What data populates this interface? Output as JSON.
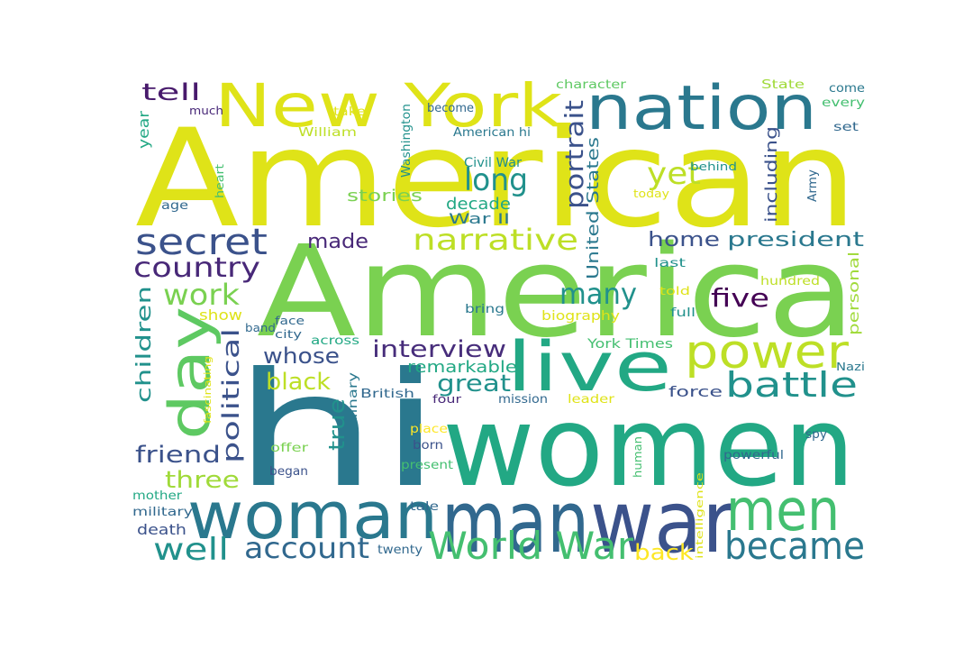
{
  "words": [
    {
      "text": "American",
      "color": "#dfe318"
    },
    {
      "text": "America",
      "color": "#7ad151"
    },
    {
      "text": "hi",
      "color": "#2a788e"
    },
    {
      "text": "women",
      "color": "#22a884"
    },
    {
      "text": "man",
      "color": "#31688e"
    },
    {
      "text": "war",
      "color": "#3b528b"
    },
    {
      "text": "woman",
      "color": "#2a788e"
    },
    {
      "text": "nation",
      "color": "#2a788e"
    },
    {
      "text": "New York",
      "color": "#dfe318"
    },
    {
      "text": "live",
      "color": "#22a884"
    },
    {
      "text": "power",
      "color": "#bddf26"
    },
    {
      "text": "day",
      "color": "#5ec962"
    },
    {
      "text": "men",
      "color": "#44bf70"
    },
    {
      "text": "World War",
      "color": "#44bf70"
    },
    {
      "text": "became",
      "color": "#2a788e"
    },
    {
      "text": "secret",
      "color": "#3b528b"
    },
    {
      "text": "narrative",
      "color": "#bddf26"
    },
    {
      "text": "battle",
      "color": "#21918c"
    },
    {
      "text": "country",
      "color": "#482878"
    },
    {
      "text": "account",
      "color": "#31688e"
    },
    {
      "text": "long",
      "color": "#21918c"
    },
    {
      "text": "many",
      "color": "#21918c"
    },
    {
      "text": "yet",
      "color": "#bddf26"
    },
    {
      "text": "work",
      "color": "#7ad151"
    },
    {
      "text": "well",
      "color": "#21918c"
    },
    {
      "text": "portrait",
      "color": "#3b528b"
    },
    {
      "text": "interview",
      "color": "#472d7b"
    },
    {
      "text": "political",
      "color": "#3b528b"
    },
    {
      "text": "home",
      "color": "#3b528b"
    },
    {
      "text": "president",
      "color": "#2a788e"
    },
    {
      "text": "five",
      "color": "#440154"
    },
    {
      "text": "whose",
      "color": "#3b528b"
    },
    {
      "text": "black",
      "color": "#bddf26"
    },
    {
      "text": "great",
      "color": "#21918c"
    },
    {
      "text": "tell",
      "color": "#481a6c"
    },
    {
      "text": "friend",
      "color": "#3b528b"
    },
    {
      "text": "three",
      "color": "#a0da39"
    },
    {
      "text": "children",
      "color": "#21918c"
    },
    {
      "text": "back",
      "color": "#fde725"
    },
    {
      "text": "true",
      "color": "#21918c"
    },
    {
      "text": "made",
      "color": "#482878"
    },
    {
      "text": "stories",
      "color": "#7ad151"
    },
    {
      "text": "decade",
      "color": "#22a884"
    },
    {
      "text": "War II",
      "color": "#2a788e"
    },
    {
      "text": "United States",
      "color": "#2a788e"
    },
    {
      "text": "including",
      "color": "#3b528b"
    },
    {
      "text": "remarkable",
      "color": "#22a884"
    },
    {
      "text": "force",
      "color": "#3b528b"
    },
    {
      "text": "personal",
      "color": "#a0da39"
    },
    {
      "text": "show",
      "color": "#dfe318"
    },
    {
      "text": "biography",
      "color": "#dfe318"
    },
    {
      "text": "year",
      "color": "#22a884"
    },
    {
      "text": "Civil War",
      "color": "#21918c"
    },
    {
      "text": "Washington",
      "color": "#21918c"
    },
    {
      "text": "American hi",
      "color": "#2a788e"
    },
    {
      "text": "York Times",
      "color": "#44bf70"
    },
    {
      "text": "extraordinary",
      "color": "#2a788e"
    },
    {
      "text": "British",
      "color": "#31688e"
    },
    {
      "text": "mission",
      "color": "#31688e"
    },
    {
      "text": "leader",
      "color": "#dfe318"
    },
    {
      "text": "Army",
      "color": "#31688e"
    },
    {
      "text": "hundred",
      "color": "#bddf26"
    },
    {
      "text": "character",
      "color": "#5ec962"
    },
    {
      "text": "State",
      "color": "#a0da39"
    },
    {
      "text": "come",
      "color": "#2a788e"
    },
    {
      "text": "every",
      "color": "#44bf70"
    },
    {
      "text": "set",
      "color": "#31688e"
    },
    {
      "text": "become",
      "color": "#31688e"
    },
    {
      "text": "much",
      "color": "#482878"
    },
    {
      "text": "take",
      "color": "#dfe318"
    },
    {
      "text": "William",
      "color": "#bddf26"
    },
    {
      "text": "heart",
      "color": "#44bf70"
    },
    {
      "text": "age",
      "color": "#31688e"
    },
    {
      "text": "behind",
      "color": "#21918c"
    },
    {
      "text": "today",
      "color": "#dfe318"
    },
    {
      "text": "last",
      "color": "#21918c"
    },
    {
      "text": "told",
      "color": "#dfe318"
    },
    {
      "text": "full",
      "color": "#21918c"
    },
    {
      "text": "bring",
      "color": "#2a788e"
    },
    {
      "text": "face",
      "color": "#31688e"
    },
    {
      "text": "city",
      "color": "#31688e"
    },
    {
      "text": "band",
      "color": "#31688e"
    },
    {
      "text": "across",
      "color": "#22a884"
    },
    {
      "text": "four",
      "color": "#482878"
    },
    {
      "text": "Nazi",
      "color": "#2a788e"
    },
    {
      "text": "fascinating",
      "color": "#dfe318"
    },
    {
      "text": "offer",
      "color": "#7ad151"
    },
    {
      "text": "born",
      "color": "#3b528b"
    },
    {
      "text": "place",
      "color": "#fde725"
    },
    {
      "text": "present",
      "color": "#44bf70"
    },
    {
      "text": "human",
      "color": "#44bf70"
    },
    {
      "text": "intelligence",
      "color": "#dfe318"
    },
    {
      "text": "powerful",
      "color": "#31688e"
    },
    {
      "text": "spy",
      "color": "#31688e"
    },
    {
      "text": "began",
      "color": "#3b528b"
    },
    {
      "text": "mother",
      "color": "#22a884"
    },
    {
      "text": "military",
      "color": "#31688e"
    },
    {
      "text": "death",
      "color": "#3b528b"
    },
    {
      "text": "tale",
      "color": "#31688e"
    },
    {
      "text": "twenty",
      "color": "#31688e"
    }
  ]
}
